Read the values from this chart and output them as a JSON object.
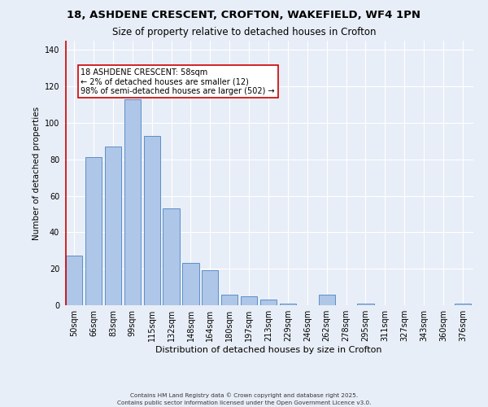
{
  "title_line1": "18, ASHDENE CRESCENT, CROFTON, WAKEFIELD, WF4 1PN",
  "title_line2": "Size of property relative to detached houses in Crofton",
  "xlabel": "Distribution of detached houses by size in Crofton",
  "ylabel": "Number of detached properties",
  "bar_labels": [
    "50sqm",
    "66sqm",
    "83sqm",
    "99sqm",
    "115sqm",
    "132sqm",
    "148sqm",
    "164sqm",
    "180sqm",
    "197sqm",
    "213sqm",
    "229sqm",
    "246sqm",
    "262sqm",
    "278sqm",
    "295sqm",
    "311sqm",
    "327sqm",
    "343sqm",
    "360sqm",
    "376sqm"
  ],
  "bar_values": [
    27,
    81,
    87,
    113,
    93,
    53,
    23,
    19,
    6,
    5,
    3,
    1,
    0,
    6,
    0,
    1,
    0,
    0,
    0,
    0,
    1
  ],
  "bar_color": "#aec6e8",
  "bar_edge_color": "#5b8fc9",
  "highlight_line_color": "#cc0000",
  "annotation_text": "18 ASHDENE CRESCENT: 58sqm\n← 2% of detached houses are smaller (12)\n98% of semi-detached houses are larger (502) →",
  "annotation_box_color": "#ffffff",
  "annotation_box_edge_color": "#cc0000",
  "ylim": [
    0,
    145
  ],
  "yticks": [
    0,
    20,
    40,
    60,
    80,
    100,
    120,
    140
  ],
  "footer_line1": "Contains HM Land Registry data © Crown copyright and database right 2025.",
  "footer_line2": "Contains public sector information licensed under the Open Government Licence v3.0.",
  "background_color": "#e8eef7",
  "grid_color": "#ffffff"
}
